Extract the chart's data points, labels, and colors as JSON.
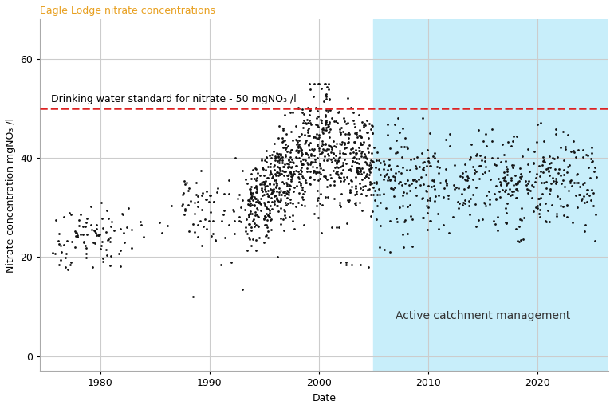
{
  "title": "Eagle Lodge nitrate concentrations",
  "title_color": "#E8A020",
  "xlabel": "Date",
  "ylabel": "Nitrate concentration mgNO₃ /l",
  "ylim": [
    -3,
    68
  ],
  "xlim_start": 1974.5,
  "xlim_end": 2026.5,
  "yticks": [
    0,
    20,
    40,
    60
  ],
  "xticks": [
    1980,
    1990,
    2000,
    2010,
    2020
  ],
  "dw_standard_y": 50,
  "dw_standard_label": "Drinking water standard for nitrate - 50 mgNO₃ /l",
  "dw_line_color": "#DD2222",
  "shade_start": 2005.0,
  "shade_end": 2026.5,
  "shade_color": "#C8EEFA",
  "shade_alpha": 1.0,
  "shade_label": "Active catchment management",
  "dot_color": "#111111",
  "dot_size": 4,
  "background_color": "#ffffff",
  "grid_color": "#cccccc",
  "spine_color": "#aaaaaa",
  "title_fontsize": 9,
  "label_fontsize": 9,
  "tick_fontsize": 9,
  "annotation_fontsize": 10
}
